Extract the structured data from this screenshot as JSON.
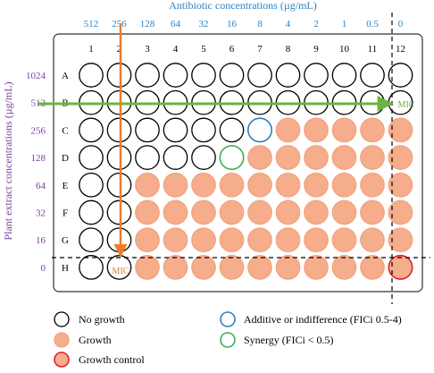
{
  "top_axis": {
    "title": "Antibiotic concentrations (µg/mL)",
    "values": [
      "512",
      "256",
      "128",
      "64",
      "32",
      "16",
      "8",
      "4",
      "2",
      "1",
      "0.5",
      "0"
    ]
  },
  "left_axis": {
    "title": "Plant extract concentrations (µg/mL)",
    "values": [
      "1024",
      "512",
      "256",
      "128",
      "64",
      "32",
      "16",
      "0"
    ]
  },
  "plate": {
    "columns": [
      "1",
      "2",
      "3",
      "4",
      "5",
      "6",
      "7",
      "8",
      "9",
      "10",
      "11",
      "12"
    ],
    "rows": [
      "A",
      "B",
      "C",
      "D",
      "E",
      "F",
      "G",
      "H"
    ],
    "wells": [
      [
        "N",
        "N",
        "N",
        "N",
        "N",
        "N",
        "N",
        "N",
        "N",
        "N",
        "N",
        "N"
      ],
      [
        "N",
        "N",
        "N",
        "N",
        "N",
        "N",
        "N",
        "N",
        "N",
        "N",
        "N",
        "N"
      ],
      [
        "N",
        "N",
        "N",
        "N",
        "N",
        "N",
        "A",
        "G",
        "G",
        "G",
        "G",
        "G"
      ],
      [
        "N",
        "N",
        "N",
        "N",
        "N",
        "S",
        "G",
        "G",
        "G",
        "G",
        "G",
        "G"
      ],
      [
        "N",
        "N",
        "G",
        "G",
        "G",
        "G",
        "G",
        "G",
        "G",
        "G",
        "G",
        "G"
      ],
      [
        "N",
        "N",
        "G",
        "G",
        "G",
        "G",
        "G",
        "G",
        "G",
        "G",
        "G",
        "G"
      ],
      [
        "N",
        "N",
        "G",
        "G",
        "G",
        "G",
        "G",
        "G",
        "G",
        "G",
        "G",
        "G"
      ],
      [
        "N",
        "N",
        "G",
        "G",
        "G",
        "G",
        "G",
        "G",
        "G",
        "G",
        "G",
        "C"
      ]
    ],
    "mic_row_label": "MIC",
    "mic_col_label": "MIC"
  },
  "legend": {
    "no_growth": "No growth",
    "growth": "Growth",
    "growth_control": "Growth control",
    "additive": "Additive or indifference (FICi 0.5-4)",
    "synergy": "Synergy (FICi < 0.5)"
  },
  "colors": {
    "axis_blue": "#2b83c6",
    "axis_purple": "#7b3fa0",
    "growth_fill": "#f5ad8c",
    "growth_stroke": "#f3a27c",
    "control_stroke": "#e0202a",
    "additive_stroke": "#2f7fc0",
    "synergy_stroke": "#3fae5a",
    "green_arrow": "#6cb33f",
    "orange_arrow": "#ec7d2c",
    "mic_text": "#d9822b"
  }
}
